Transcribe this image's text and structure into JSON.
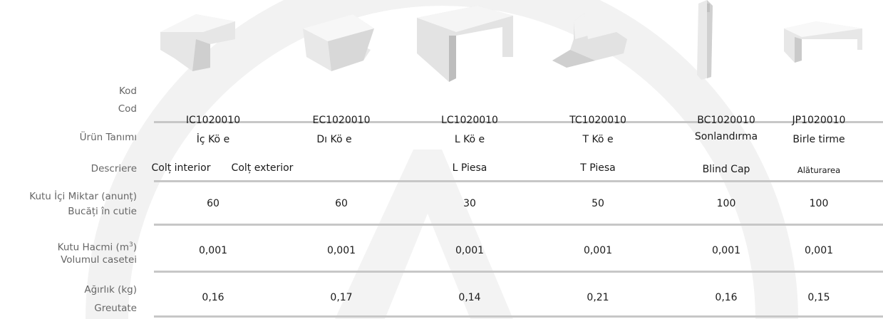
{
  "labels": {
    "kod": "Kod",
    "cod": "Cod",
    "urun_tanimi": "Ürün Tanımı",
    "descriere": "Descriere",
    "kutu_ici": "Kutu İçi Miktar (anunț)",
    "bucati": "Bucăți în cutie",
    "kutu_hacmi": "Kutu Hacmi (m",
    "kutu_hacmi_exp": "3",
    "kutu_hacmi_close": ")",
    "volumul": "Volumul casetei",
    "agirlik": "Ağırlık (kg)",
    "greutate": "Greutate"
  },
  "products": [
    {
      "icon": "inner-corner-icon",
      "code": "IC1020010",
      "name_tr": "İç Kö   e",
      "name_ro": "Colț interior",
      "qty": "60",
      "vol": "0,001",
      "weight": "0,16"
    },
    {
      "icon": "outer-corner-icon",
      "code": "EC1020010",
      "name_tr": "Dı    Kö    e",
      "name_ro": "Colț exterior",
      "qty": "60",
      "vol": "0,001",
      "weight": "0,17"
    },
    {
      "icon": "l-piece-icon",
      "code": "LC1020010",
      "name_tr": "L Kö    e",
      "name_ro": "L Piesa",
      "qty": "30",
      "vol": "0,001",
      "weight": "0,14"
    },
    {
      "icon": "t-piece-icon",
      "code": "TC1020010",
      "name_tr": "T Kö    e",
      "name_ro": "T Piesa",
      "qty": "50",
      "vol": "0,001",
      "weight": "0,21"
    },
    {
      "icon": "blind-cap-icon",
      "code": "BC1020010",
      "name_tr": "Sonlandırma",
      "name_ro": "Blind Cap",
      "qty": "100",
      "vol": "0,001",
      "weight": "0,16"
    },
    {
      "icon": "joint-piece-icon",
      "code": "JP1020010",
      "name_tr": "Birle    tirme",
      "name_ro": "Alăturarea",
      "qty": "100",
      "vol": "0,001",
      "weight": "0,15"
    }
  ],
  "colors": {
    "rule": "#c7c7c7",
    "watermark": "#f0f0f0"
  }
}
